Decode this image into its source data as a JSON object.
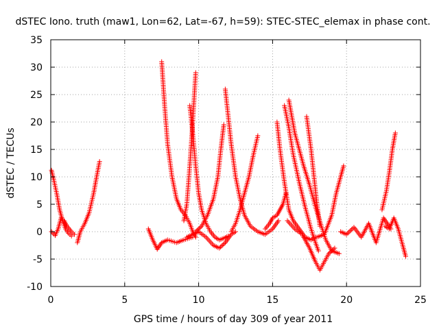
{
  "chart_data": {
    "type": "scatter",
    "title": "dSTEC Iono. truth (maw1, Lon=62, Lat=-67, h=59): STEC-STEC_elemax in phase cont.",
    "xlabel": "GPS time / hours of day 309 of year 2011",
    "ylabel": "dSTEC  / TECUs",
    "xlim": [
      0,
      25
    ],
    "ylim": [
      -10,
      35
    ],
    "xticks": [
      0,
      5,
      10,
      15,
      20,
      25
    ],
    "yticks": [
      -10,
      -5,
      0,
      5,
      10,
      15,
      20,
      25,
      30,
      35
    ],
    "grid": true,
    "marker": "plus",
    "color": "#ff0000",
    "arcs": [
      {
        "x": [
          0.05,
          0.2,
          0.4,
          0.6,
          0.8,
          1.0,
          1.2,
          1.4
        ],
        "y": [
          11.2,
          9.5,
          7.0,
          4.0,
          2.0,
          0.5,
          -0.3,
          -0.8
        ]
      },
      {
        "x": [
          0.05,
          0.3,
          0.5,
          0.7,
          0.9,
          1.1,
          1.4,
          1.6
        ],
        "y": [
          0.0,
          -0.7,
          0.5,
          2.5,
          2.0,
          1.0,
          0.0,
          -0.5
        ]
      },
      {
        "x": [
          1.8,
          2.0,
          2.3,
          2.6,
          2.9,
          3.1,
          3.3
        ],
        "y": [
          -2.0,
          0.0,
          1.5,
          3.5,
          7.0,
          10.0,
          12.8
        ]
      },
      {
        "x": [
          6.6,
          6.9,
          7.2,
          7.5,
          7.9,
          8.5,
          9.0,
          9.6
        ],
        "y": [
          0.5,
          -1.5,
          -3.2,
          -2.0,
          -1.5,
          -2.0,
          -1.5,
          -1.0
        ]
      },
      {
        "x": [
          7.5,
          7.7,
          7.9,
          8.2,
          8.5,
          8.8,
          9.1,
          9.4,
          9.6,
          9.8
        ],
        "y": [
          31.0,
          23.0,
          16.0,
          10.0,
          6.0,
          4.0,
          3.0,
          1.5,
          0.0,
          -1.0
        ]
      },
      {
        "x": [
          9.0,
          9.2,
          9.4,
          9.6,
          9.8
        ],
        "y": [
          2.0,
          5.0,
          12.0,
          20.0,
          29.0
        ]
      },
      {
        "x": [
          9.4,
          9.6,
          9.8,
          10.0,
          10.2,
          10.5,
          10.8,
          11.1,
          11.4,
          11.7,
          12.0
        ],
        "y": [
          23.0,
          18.0,
          12.0,
          7.0,
          4.0,
          1.5,
          0.0,
          -1.0,
          -1.5,
          -1.2,
          -0.8
        ]
      },
      {
        "x": [
          9.2,
          9.6,
          10.0,
          10.5,
          11.0,
          11.4,
          11.8,
          12.2,
          12.5
        ],
        "y": [
          -1.0,
          -0.5,
          0.0,
          -1.0,
          -2.5,
          -3.0,
          -2.0,
          -0.5,
          0.0
        ]
      },
      {
        "x": [
          9.8,
          10.2,
          10.6,
          11.0,
          11.3,
          11.5,
          11.7
        ],
        "y": [
          0.0,
          1.0,
          3.0,
          6.0,
          10.0,
          15.0,
          19.5
        ]
      },
      {
        "x": [
          11.8,
          12.0,
          12.2,
          12.5,
          12.8,
          13.1,
          13.5,
          14.0,
          14.5,
          15.0,
          15.4
        ],
        "y": [
          26.0,
          21.0,
          16.0,
          10.0,
          6.0,
          3.0,
          1.0,
          0.0,
          -0.5,
          0.5,
          2.0
        ]
      },
      {
        "x": [
          12.2,
          12.5,
          12.8,
          13.1,
          13.4,
          13.7,
          14.0
        ],
        "y": [
          0.0,
          1.5,
          4.0,
          7.0,
          10.0,
          14.0,
          17.5
        ]
      },
      {
        "x": [
          14.5,
          14.8,
          15.0,
          15.3,
          15.5,
          15.7,
          15.9
        ],
        "y": [
          0.5,
          1.5,
          2.5,
          3.0,
          4.0,
          5.0,
          7.0
        ]
      },
      {
        "x": [
          15.3,
          15.5,
          15.8,
          16.1,
          16.4,
          16.8,
          17.2,
          17.6,
          17.9
        ],
        "y": [
          20.0,
          15.0,
          9.0,
          4.0,
          2.0,
          0.5,
          -1.0,
          -1.5,
          -1.0
        ]
      },
      {
        "x": [
          16.1,
          16.3,
          16.5,
          16.8,
          17.1,
          17.5,
          17.9,
          18.3,
          18.6,
          19.0,
          19.5
        ],
        "y": [
          24.0,
          21.0,
          18.0,
          15.0,
          12.0,
          8.5,
          4.5,
          1.0,
          -1.5,
          -3.5,
          -4.0
        ]
      },
      {
        "x": [
          15.8,
          16.1,
          16.4,
          16.8,
          17.2,
          17.6,
          17.9,
          18.1
        ],
        "y": [
          23.0,
          19.0,
          14.0,
          9.0,
          4.5,
          0.5,
          -2.0,
          -3.5
        ]
      },
      {
        "x": [
          16.0,
          16.5,
          17.0,
          17.5,
          17.9,
          18.2,
          18.5,
          18.8,
          19.2
        ],
        "y": [
          2.0,
          0.5,
          -0.5,
          -3.0,
          -5.5,
          -7.0,
          -5.5,
          -4.0,
          -3.0
        ]
      },
      {
        "x": [
          17.3,
          17.6,
          17.8,
          18.0,
          18.2
        ],
        "y": [
          21.0,
          15.0,
          10.0,
          5.0,
          1.0
        ]
      },
      {
        "x": [
          18.0,
          18.5,
          19.0,
          19.3,
          19.6,
          19.8
        ],
        "y": [
          -1.0,
          -0.5,
          3.0,
          7.0,
          10.0,
          12.0
        ]
      },
      {
        "x": [
          19.6,
          20.0,
          20.5,
          21.0,
          21.5,
          22.0,
          22.5,
          23.0
        ],
        "y": [
          0.0,
          -0.5,
          0.8,
          -1.0,
          1.5,
          -2.0,
          2.5,
          0.5
        ]
      },
      {
        "x": [
          22.4,
          22.7,
          22.9,
          23.1,
          23.3
        ],
        "y": [
          4.0,
          7.5,
          11.0,
          15.0,
          18.0
        ]
      },
      {
        "x": [
          22.6,
          22.9,
          23.2,
          23.5,
          23.8,
          24.0
        ],
        "y": [
          1.0,
          0.5,
          2.5,
          0.5,
          -2.5,
          -4.5
        ]
      }
    ]
  }
}
